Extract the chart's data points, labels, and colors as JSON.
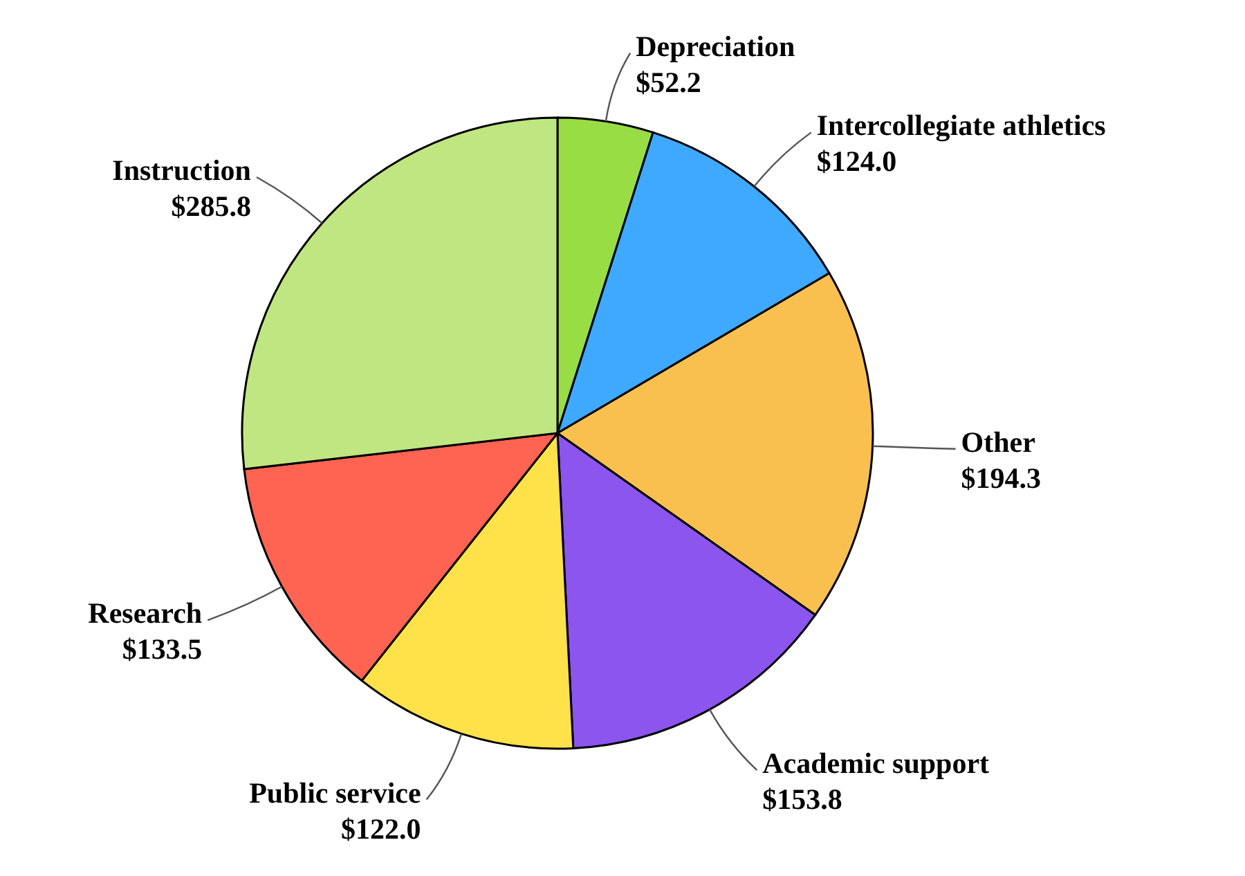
{
  "chart_data": {
    "type": "pie",
    "categories": [
      "Depreciation",
      "Intercollegiate athletics",
      "Other",
      "Academic support",
      "Public service",
      "Research",
      "Instruction"
    ],
    "values": [
      52.2,
      124.0,
      194.3,
      153.8,
      122.0,
      133.5,
      285.8
    ],
    "value_labels": [
      "$52.2",
      "$124.0",
      "$194.3",
      "$153.8",
      "$122.0",
      "$133.5",
      "$285.8"
    ],
    "colors": [
      "#99dd44",
      "#3fa9ff",
      "#f9c050",
      "#8c55ee",
      "#ffe14a",
      "#ff6352",
      "#c0e681"
    ],
    "legend": false
  }
}
